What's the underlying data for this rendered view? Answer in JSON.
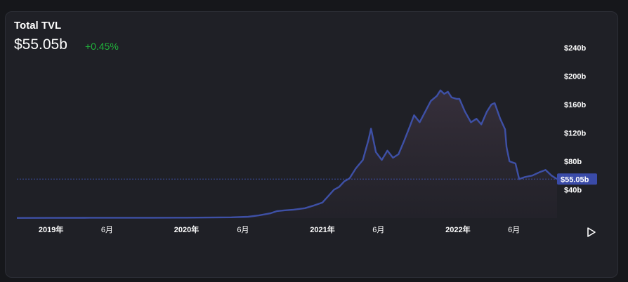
{
  "header": {
    "title": "Total TVL",
    "value": "$55.05b",
    "change": "+0.45%"
  },
  "colors": {
    "line": "#3e50a6",
    "positive": "#20b33b",
    "badge_bg": "#3a4ba8",
    "background": "#1f2026"
  },
  "play_icon": "play-icon",
  "chart_data": {
    "type": "area",
    "title": "Total TVL",
    "xlabel": "",
    "ylabel": "",
    "ylim": [
      0,
      260
    ],
    "y_unit": "billion USD",
    "current_value": 55.05,
    "current_label": "$55.05b",
    "y_ticks": [
      {
        "value": 40,
        "label": "$40b"
      },
      {
        "value": 80,
        "label": "$80b"
      },
      {
        "value": 120,
        "label": "$120b"
      },
      {
        "value": 160,
        "label": "$160b"
      },
      {
        "value": 200,
        "label": "$200b"
      },
      {
        "value": 240,
        "label": "$240b"
      }
    ],
    "x_ticks": [
      {
        "date": "2019-01-01",
        "label": "2019年",
        "bold": true
      },
      {
        "date": "2019-06-01",
        "label": "6月",
        "bold": false
      },
      {
        "date": "2020-01-01",
        "label": "2020年",
        "bold": true
      },
      {
        "date": "2020-06-01",
        "label": "6月",
        "bold": false
      },
      {
        "date": "2021-01-01",
        "label": "2021年",
        "bold": true
      },
      {
        "date": "2021-06-01",
        "label": "6月",
        "bold": false
      },
      {
        "date": "2022-01-01",
        "label": "2022年",
        "bold": true
      },
      {
        "date": "2022-06-01",
        "label": "6月",
        "bold": false
      }
    ],
    "series": [
      {
        "x": [
          "2018-10-01",
          "2019-01-01",
          "2019-04-01",
          "2019-07-01",
          "2019-10-01",
          "2020-01-01",
          "2020-03-01",
          "2020-05-01",
          "2020-06-15",
          "2020-07-15",
          "2020-08-15",
          "2020-09-01",
          "2020-09-20",
          "2020-10-15",
          "2020-11-15",
          "2020-12-10",
          "2021-01-01",
          "2021-01-15",
          "2021-02-01",
          "2021-02-15",
          "2021-03-01",
          "2021-03-15",
          "2021-04-01",
          "2021-04-20",
          "2021-05-05",
          "2021-05-12",
          "2021-05-25",
          "2021-06-10",
          "2021-06-25",
          "2021-07-10",
          "2021-07-25",
          "2021-08-10",
          "2021-08-25",
          "2021-09-05",
          "2021-09-20",
          "2021-10-05",
          "2021-10-20",
          "2021-11-05",
          "2021-11-15",
          "2021-11-25",
          "2021-12-05",
          "2021-12-15",
          "2021-12-28",
          "2022-01-05",
          "2022-01-20",
          "2022-02-05",
          "2022-02-20",
          "2022-03-05",
          "2022-03-20",
          "2022-04-01",
          "2022-04-10",
          "2022-04-25",
          "2022-05-08",
          "2022-05-12",
          "2022-05-20",
          "2022-06-05",
          "2022-06-15",
          "2022-07-01",
          "2022-07-20",
          "2022-08-10",
          "2022-08-25",
          "2022-09-10",
          "2022-09-25"
        ],
        "values": [
          0.3,
          0.4,
          0.5,
          0.6,
          0.6,
          0.7,
          0.9,
          1.2,
          2,
          4,
          7,
          10,
          11,
          12,
          14,
          18,
          22,
          30,
          40,
          44,
          52,
          56,
          70,
          82,
          110,
          126,
          93,
          82,
          95,
          85,
          90,
          110,
          130,
          145,
          135,
          150,
          165,
          172,
          180,
          175,
          178,
          170,
          168,
          168,
          150,
          135,
          140,
          132,
          150,
          160,
          162,
          140,
          125,
          100,
          80,
          77,
          55,
          58,
          60,
          65,
          68,
          60,
          55.05
        ]
      }
    ]
  }
}
